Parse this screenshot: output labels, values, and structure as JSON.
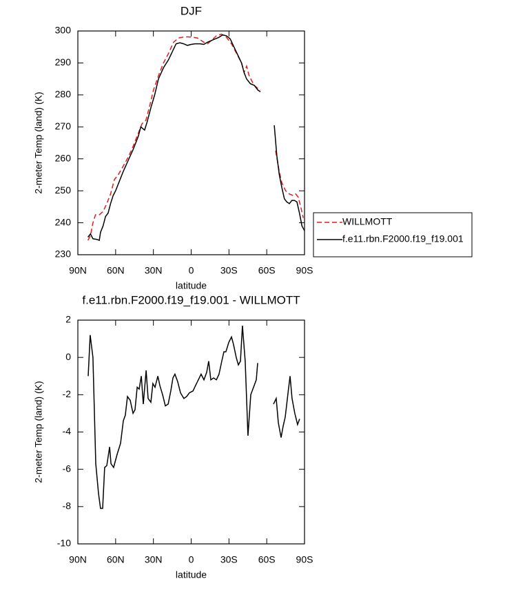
{
  "chart_data": [
    {
      "type": "line",
      "title": "DJF",
      "xlabel": "latitude",
      "ylabel": "2-meter Temp (land) (K)",
      "xlim": [
        90,
        -90
      ],
      "xticks": [
        {
          "value": 90,
          "label": "90N"
        },
        {
          "value": 60,
          "label": "60N"
        },
        {
          "value": 30,
          "label": "30N"
        },
        0,
        {
          "value": -30,
          "label": "30S"
        },
        {
          "value": -60,
          "label": "60S"
        },
        {
          "value": -90,
          "label": "90S"
        }
      ],
      "ylim": [
        230,
        300
      ],
      "yticks": [
        230,
        240,
        250,
        260,
        270,
        280,
        290,
        300
      ],
      "legend": "right",
      "series": [
        {
          "name": "WILLMOTT",
          "color": "#e41a1c",
          "dash": true,
          "x": [
            82,
            80,
            78,
            76,
            73,
            70,
            67,
            64,
            61,
            58,
            55,
            50,
            46,
            42,
            39,
            36,
            33,
            30,
            26,
            22,
            18,
            14,
            10,
            5,
            0,
            -5,
            -10,
            -13,
            -16,
            -20,
            -24,
            -28,
            -32,
            -36,
            -40,
            -42,
            -44,
            -46,
            -48,
            -50,
            -53,
            -55,
            -60,
            -67,
            -70,
            -72,
            -75,
            -78,
            -81,
            -83,
            -85,
            -87,
            -89
          ],
          "values": [
            234.5,
            236,
            240,
            242.5,
            242.5,
            243.5,
            246,
            249,
            253.5,
            255,
            257,
            260.5,
            264,
            268,
            271,
            272,
            276.5,
            281.5,
            286,
            290,
            293,
            296.5,
            297.8,
            298.2,
            298.1,
            297.8,
            296.5,
            296,
            297,
            298.5,
            299,
            298,
            296,
            293,
            290,
            287,
            289,
            286,
            284.5,
            283,
            282,
            281.5,
            null,
            262.5,
            256,
            252.5,
            250,
            249,
            248.5,
            249,
            248,
            245,
            241.5
          ]
        },
        {
          "name": "f.e11.rbn.F2000.f19_f19.001",
          "color": "#000000",
          "dash": false,
          "x": [
            82,
            80,
            78,
            75,
            73,
            72,
            70,
            68,
            66,
            64,
            62,
            60,
            57,
            54,
            50,
            46,
            42,
            40,
            37,
            35,
            32,
            29,
            26,
            22,
            18,
            15,
            12,
            9,
            6,
            3,
            0,
            -3,
            -7,
            -10,
            -13,
            -16,
            -19,
            -22,
            -25,
            -28,
            -31,
            -34,
            -37,
            -40,
            -42,
            -44,
            -47,
            -50,
            -53,
            -55,
            -60,
            -66,
            -68,
            -70,
            -72,
            -74,
            -76,
            -78,
            -80,
            -82,
            -84,
            -86,
            -88,
            -90
          ],
          "values": [
            235.5,
            236.5,
            235,
            234.8,
            234.5,
            237,
            239,
            242,
            243,
            246,
            248.5,
            250,
            253,
            256,
            259.5,
            263,
            267,
            270,
            269,
            271.5,
            276,
            280,
            285,
            288.5,
            291,
            293.5,
            296,
            296.3,
            296,
            295.5,
            295.8,
            296,
            296,
            295.8,
            296.5,
            297,
            297.5,
            298,
            298.8,
            298.5,
            297.5,
            295,
            292.5,
            290,
            287,
            285,
            283.5,
            283,
            281.5,
            281,
            null,
            270.5,
            261,
            255,
            251,
            247.5,
            246.5,
            246,
            247,
            247,
            246.5,
            243,
            239,
            237.5
          ]
        }
      ]
    },
    {
      "type": "line",
      "title": "f.e11.rbn.F2000.f19_f19.001 - WILLMOTT",
      "xlabel": "latitude",
      "ylabel": "2-meter Temp (land) (K)",
      "xlim": [
        90,
        -90
      ],
      "xticks": [
        {
          "value": 90,
          "label": "90N"
        },
        {
          "value": 60,
          "label": "60N"
        },
        {
          "value": 30,
          "label": "30N"
        },
        0,
        {
          "value": -30,
          "label": "30S"
        },
        {
          "value": -60,
          "label": "60S"
        },
        {
          "value": -90,
          "label": "90S"
        }
      ],
      "ylim": [
        -10,
        2
      ],
      "yticks": [
        -10,
        -8,
        -6,
        -4,
        -2,
        0,
        2
      ],
      "color": "#000000",
      "x": [
        81.8,
        80.2,
        78,
        75.8,
        73.6,
        72,
        70.3,
        68.7,
        67,
        64.8,
        63.7,
        61.6,
        58.8,
        56.1,
        53.9,
        52.3,
        50.6,
        48.4,
        46.2,
        44.6,
        42.9,
        41.3,
        39.6,
        38,
        35.8,
        34.2,
        32,
        30.4,
        28.7,
        26.5,
        24.9,
        22.7,
        20.5,
        18.3,
        16.2,
        14.5,
        12.9,
        10.7,
        8.5,
        5.8,
        3.6,
        1.4,
        -1.4,
        -3.5,
        -5.7,
        -7.9,
        -10.1,
        -12.3,
        -13.9,
        -15.6,
        -17.8,
        -20,
        -22.1,
        -24.3,
        -26,
        -27.6,
        -29.8,
        -32,
        -33.6,
        -35.8,
        -37.5,
        -39.1,
        -40.7,
        -42.9,
        -45.1,
        -47.3,
        -49.5,
        -51.7,
        -52.8,
        -60,
        -65.4,
        -67.5,
        -69.2,
        -71.4,
        -73,
        -74.7,
        -76.9,
        -78.5,
        -80.1,
        -82.3,
        -84.5,
        -86.1
      ],
      "values": [
        -1.0,
        1.2,
        0,
        -5.7,
        -7.3,
        -8.1,
        -8.1,
        -5.9,
        -5.8,
        -4.8,
        -5.7,
        -5.9,
        -5.2,
        -4.6,
        -3.4,
        -3.1,
        -2.1,
        -2.3,
        -3.0,
        -2.8,
        -1.6,
        -1.7,
        -1.0,
        -2.5,
        -0.7,
        -2.2,
        -2.4,
        -1.4,
        -1.6,
        -1.0,
        -1.5,
        -2.0,
        -2.6,
        -2.5,
        -1.8,
        -1.1,
        -0.9,
        -1.3,
        -1.9,
        -2.2,
        -2.1,
        -1.9,
        -1.8,
        -1.5,
        -1.2,
        -0.9,
        -1.2,
        -0.8,
        -0.2,
        -1.2,
        -1.1,
        -1.2,
        -0.9,
        -0.2,
        0.3,
        0.3,
        0.8,
        1.1,
        0.7,
        0.0,
        -0.4,
        -0.2,
        1.7,
        -0.2,
        -4.2,
        -2.0,
        -1.6,
        -1.2,
        -0.3,
        null,
        -2.5,
        -2.2,
        -3.5,
        -4.3,
        -3.7,
        -3.2,
        -1.9,
        -1.0,
        -2.2,
        -3.0,
        -3.6,
        -3.3
      ]
    }
  ]
}
